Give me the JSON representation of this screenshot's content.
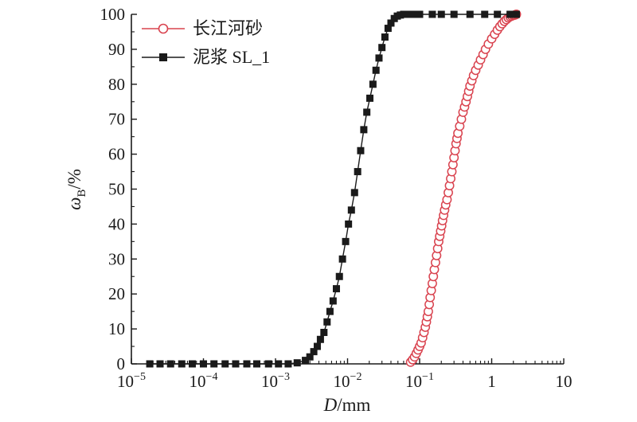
{
  "chart_data": {
    "type": "scatter",
    "xscale": "log",
    "xlim": [
      1e-05,
      10
    ],
    "ylim": [
      0,
      100
    ],
    "xticks": [
      {
        "value": 1e-05,
        "base": "10",
        "exp": "−5"
      },
      {
        "value": 0.0001,
        "base": "10",
        "exp": "−4"
      },
      {
        "value": 0.001,
        "base": "10",
        "exp": "−3"
      },
      {
        "value": 0.01,
        "base": "10",
        "exp": "−2"
      },
      {
        "value": 0.1,
        "base": "10",
        "exp": "−1"
      },
      {
        "value": 1,
        "base": "1",
        "exp": ""
      },
      {
        "value": 10,
        "base": "10",
        "exp": ""
      }
    ],
    "yticks": [
      0,
      10,
      20,
      30,
      40,
      50,
      60,
      70,
      80,
      90,
      100
    ],
    "xlabel": {
      "italic": "D",
      "rest": "/mm"
    },
    "ylabel": {
      "italic": "ω",
      "sub": "B",
      "rest": "/%"
    },
    "legend": "top-left",
    "series": [
      {
        "name": "长江河砂",
        "color": "#d9434f",
        "marker": "open-circle",
        "x": [
          0.075,
          0.08,
          0.085,
          0.09,
          0.095,
          0.1,
          0.105,
          0.11,
          0.115,
          0.12,
          0.124,
          0.128,
          0.132,
          0.136,
          0.14,
          0.145,
          0.15,
          0.155,
          0.16,
          0.166,
          0.172,
          0.178,
          0.184,
          0.19,
          0.196,
          0.202,
          0.208,
          0.215,
          0.222,
          0.23,
          0.24,
          0.25,
          0.26,
          0.27,
          0.28,
          0.29,
          0.3,
          0.31,
          0.32,
          0.33,
          0.34,
          0.36,
          0.38,
          0.4,
          0.42,
          0.44,
          0.46,
          0.48,
          0.5,
          0.53,
          0.56,
          0.6,
          0.65,
          0.7,
          0.76,
          0.82,
          0.9,
          1.0,
          1.1,
          1.2,
          1.3,
          1.4,
          1.5,
          1.6,
          1.7,
          1.8,
          1.9,
          2.0,
          2.1,
          2.2
        ],
        "y": [
          0.5,
          1.2,
          2,
          3,
          4,
          5,
          6,
          7.5,
          9,
          10.5,
          12,
          13.5,
          15,
          17,
          19,
          21,
          23,
          25,
          27,
          29,
          31,
          33,
          35,
          36.5,
          38,
          39.5,
          41,
          42.5,
          44,
          45.5,
          47,
          49,
          51,
          53,
          55,
          57,
          59,
          61,
          63,
          64.5,
          66,
          68,
          70,
          72,
          73.5,
          75,
          76.5,
          78,
          79.5,
          81,
          82.5,
          84,
          85.5,
          87,
          88.5,
          90,
          91.5,
          93,
          94.3,
          95.5,
          96.5,
          97.3,
          98,
          98.5,
          99,
          99.3,
          99.5,
          99.7,
          99.8,
          100
        ]
      },
      {
        "name": "泥浆 SL_1",
        "color": "#1a1a1a",
        "marker": "filled-square",
        "x": [
          1.8e-05,
          2.5e-05,
          3.5e-05,
          5e-05,
          7e-05,
          0.0001,
          0.00014,
          0.0002,
          0.00028,
          0.0004,
          0.00055,
          0.0008,
          0.0011,
          0.0015,
          0.002,
          0.0026,
          0.003,
          0.0034,
          0.0038,
          0.0042,
          0.0047,
          0.0052,
          0.0057,
          0.0063,
          0.007,
          0.0077,
          0.0085,
          0.0094,
          0.0103,
          0.0113,
          0.0125,
          0.0138,
          0.0152,
          0.0168,
          0.0185,
          0.0204,
          0.0225,
          0.0248,
          0.0273,
          0.03,
          0.033,
          0.0365,
          0.04,
          0.0445,
          0.049,
          0.054,
          0.06,
          0.066,
          0.073,
          0.08,
          0.1,
          0.15,
          0.2,
          0.3,
          0.5,
          0.8,
          1.2,
          1.8,
          2.2
        ],
        "y": [
          0,
          0,
          0,
          0,
          0,
          0,
          0,
          0,
          0,
          0,
          0,
          0,
          0,
          0,
          0.3,
          1,
          2,
          3.5,
          5,
          7,
          9,
          12,
          15,
          18,
          21.5,
          25,
          30,
          35,
          40,
          44,
          49,
          55,
          61,
          67,
          72,
          76,
          80,
          84,
          87.5,
          90.5,
          93.5,
          96,
          97.5,
          98.8,
          99.5,
          99.8,
          100,
          100,
          100,
          100,
          100,
          100,
          100,
          100,
          100,
          100,
          100,
          100,
          100
        ]
      }
    ]
  }
}
